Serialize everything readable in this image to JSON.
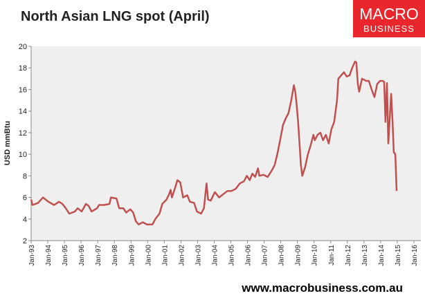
{
  "chart_data": {
    "type": "line",
    "title": "North Asian LNG spot (April)",
    "ylabel": "USD mmBtu",
    "logo": [
      "MACRO",
      "BUSINESS"
    ],
    "footer": "www.macrobusiness.com.au",
    "color": "#c0504d",
    "x": [
      1993.0,
      1993.08,
      1993.42,
      1993.71,
      1994.04,
      1994.38,
      1994.67,
      1994.88,
      1995.08,
      1995.29,
      1995.63,
      1995.79,
      1996.04,
      1996.29,
      1996.46,
      1996.63,
      1996.96,
      1997.08,
      1997.38,
      1997.71,
      1997.79,
      1998.13,
      1998.29,
      1998.54,
      1998.71,
      1998.96,
      1999.13,
      1999.29,
      1999.46,
      1999.71,
      1999.96,
      2000.29,
      2000.46,
      2000.71,
      2000.88,
      2001.13,
      2001.29,
      2001.38,
      2001.46,
      2001.63,
      2001.79,
      2001.96,
      2002.13,
      2002.38,
      2002.54,
      2002.79,
      2002.96,
      2003.21,
      2003.38,
      2003.54,
      2003.63,
      2003.79,
      2004.04,
      2004.29,
      2004.54,
      2004.79,
      2005.04,
      2005.29,
      2005.54,
      2005.79,
      2005.96,
      2006.13,
      2006.29,
      2006.46,
      2006.63,
      2006.71,
      2006.96,
      2007.21,
      2007.46,
      2007.63,
      2007.79,
      2007.96,
      2008.13,
      2008.29,
      2008.46,
      2008.63,
      2008.79,
      2008.88,
      2008.96,
      2009.04,
      2009.21,
      2009.29,
      2009.46,
      2009.63,
      2009.79,
      2009.96,
      2010.04,
      2010.21,
      2010.38,
      2010.54,
      2010.71,
      2010.88,
      2011.04,
      2011.21,
      2011.38,
      2011.46,
      2011.63,
      2011.79,
      2011.96,
      2012.13,
      2012.29,
      2012.46,
      2012.54,
      2012.63,
      2012.71,
      2012.88,
      2013.13,
      2013.29,
      2013.46,
      2013.63,
      2013.79,
      2013.96,
      2014.13,
      2014.21,
      2014.29,
      2014.38,
      2014.46,
      2014.63,
      2014.71,
      2014.79,
      2014.88,
      2014.96
    ],
    "values": [
      5.8,
      5.3,
      5.5,
      6.0,
      5.6,
      5.3,
      5.6,
      5.4,
      5.0,
      4.5,
      4.7,
      5.0,
      4.7,
      5.4,
      5.2,
      4.7,
      5.0,
      5.3,
      5.3,
      5.4,
      6.0,
      5.9,
      5.0,
      5.0,
      4.6,
      4.9,
      4.6,
      3.8,
      3.5,
      3.7,
      3.5,
      3.5,
      4.0,
      4.5,
      5.4,
      5.8,
      6.3,
      6.7,
      6.0,
      6.8,
      7.6,
      7.4,
      6.0,
      6.2,
      5.6,
      5.5,
      4.7,
      4.5,
      5.0,
      7.3,
      5.8,
      5.7,
      6.5,
      6.0,
      6.3,
      6.6,
      6.6,
      6.8,
      7.3,
      7.5,
      8.0,
      7.6,
      8.2,
      7.9,
      8.7,
      8.0,
      8.1,
      7.9,
      8.5,
      9.0,
      10.0,
      11.3,
      12.7,
      13.3,
      13.8,
      15.0,
      16.4,
      15.7,
      14.5,
      13.0,
      9.0,
      8.0,
      8.8,
      10.0,
      10.8,
      11.8,
      11.3,
      11.8,
      12.0,
      11.3,
      11.8,
      11.0,
      12.3,
      13.0,
      15.0,
      17.0,
      17.3,
      17.6,
      17.2,
      17.3,
      18.0,
      18.6,
      18.5,
      16.5,
      15.8,
      17.0,
      16.8,
      16.8,
      16.0,
      15.3,
      16.5,
      16.8,
      16.8,
      16.7,
      13.0,
      16.6,
      11.0,
      15.6,
      13.2,
      10.2,
      10.0,
      6.6
    ],
    "xlim": [
      1993,
      2016
    ],
    "xticks": [
      {
        "value": 1993,
        "label": "Jan-93"
      },
      {
        "value": 1994,
        "label": "Jan-94"
      },
      {
        "value": 1995,
        "label": "Jan-95"
      },
      {
        "value": 1996,
        "label": "Jan-96"
      },
      {
        "value": 1997,
        "label": "Jan-97"
      },
      {
        "value": 1998,
        "label": "Jan-98"
      },
      {
        "value": 1999,
        "label": "Jan-99"
      },
      {
        "value": 2000,
        "label": "Jan-00"
      },
      {
        "value": 2001,
        "label": "Jan-01"
      },
      {
        "value": 2002,
        "label": "Jan-02"
      },
      {
        "value": 2003,
        "label": "Jan-03"
      },
      {
        "value": 2004,
        "label": "Jan-04"
      },
      {
        "value": 2005,
        "label": "Jan-05"
      },
      {
        "value": 2006,
        "label": "Jan-06"
      },
      {
        "value": 2007,
        "label": "Jan-07"
      },
      {
        "value": 2008,
        "label": "Jan-08"
      },
      {
        "value": 2009,
        "label": "Jan-09"
      },
      {
        "value": 2010,
        "label": "Jan-10"
      },
      {
        "value": 2011,
        "label": "Jan-11"
      },
      {
        "value": 2012,
        "label": "Jan-12"
      },
      {
        "value": 2013,
        "label": "Jan-13"
      },
      {
        "value": 2014,
        "label": "Jan-14"
      },
      {
        "value": 2015,
        "label": "Jan-15"
      },
      {
        "value": 2016,
        "label": "Jan-16"
      }
    ],
    "ylim": [
      2,
      20
    ],
    "yticks": [
      2,
      4,
      6,
      8,
      10,
      12,
      14,
      16,
      18,
      20
    ],
    "grid": false
  }
}
